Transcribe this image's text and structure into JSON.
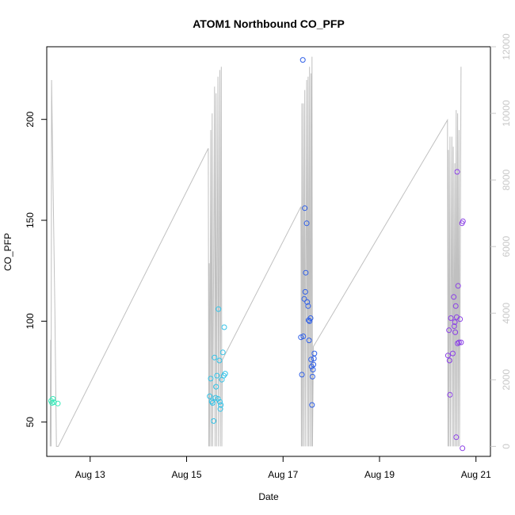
{
  "chart_data": {
    "type": "scatter",
    "title": "ATOM1 Northbound CO_PFP",
    "xlabel": "Date",
    "ylabel": "CO_PFP",
    "x_ticks": [
      "Aug 13",
      "Aug 15",
      "Aug 17",
      "Aug 19",
      "Aug 21"
    ],
    "y_ticks": [
      50,
      100,
      150,
      200
    ],
    "y2_ticks": [
      0,
      2000,
      4000,
      6000,
      8000,
      10000,
      12000
    ],
    "xlim_days": [
      12.1,
      21.3
    ],
    "ylim": [
      33,
      236
    ],
    "y2lim": [
      -300,
      12000
    ],
    "grid": false,
    "legend": "none",
    "point_colors": [
      "#37e8b8",
      "#33c3e8",
      "#3060e8",
      "#8a3fe6"
    ],
    "line_color": "#c0c0c0",
    "axis_color_right": "#c8c8c8",
    "points": [
      {
        "x": 12.19,
        "y": 60.5,
        "g": 0
      },
      {
        "x": 12.21,
        "y": 59.5,
        "g": 0
      },
      {
        "x": 12.23,
        "y": 61.5,
        "g": 0
      },
      {
        "x": 12.25,
        "y": 59.8,
        "g": 0
      },
      {
        "x": 12.33,
        "y": 59.2,
        "g": 0
      },
      {
        "x": 15.48,
        "y": 62.8,
        "g": 1
      },
      {
        "x": 15.5,
        "y": 71.5,
        "g": 1
      },
      {
        "x": 15.52,
        "y": 60.2,
        "g": 1
      },
      {
        "x": 15.54,
        "y": 59.5,
        "g": 1
      },
      {
        "x": 15.56,
        "y": 50.5,
        "g": 1
      },
      {
        "x": 15.58,
        "y": 82.0,
        "g": 1
      },
      {
        "x": 15.6,
        "y": 62.0,
        "g": 1
      },
      {
        "x": 15.61,
        "y": 67.5,
        "g": 1
      },
      {
        "x": 15.63,
        "y": 73.0,
        "g": 1
      },
      {
        "x": 15.65,
        "y": 61.5,
        "g": 1
      },
      {
        "x": 15.66,
        "y": 106.0,
        "g": 1
      },
      {
        "x": 15.68,
        "y": 80.5,
        "g": 1
      },
      {
        "x": 15.69,
        "y": 60.0,
        "g": 1
      },
      {
        "x": 15.7,
        "y": 56.5,
        "g": 1
      },
      {
        "x": 15.71,
        "y": 58.5,
        "g": 1
      },
      {
        "x": 15.73,
        "y": 71.0,
        "g": 1
      },
      {
        "x": 15.75,
        "y": 84.5,
        "g": 1
      },
      {
        "x": 15.77,
        "y": 73.0,
        "g": 1
      },
      {
        "x": 15.78,
        "y": 97.0,
        "g": 1
      },
      {
        "x": 15.8,
        "y": 74.0,
        "g": 1
      },
      {
        "x": 17.37,
        "y": 92.0,
        "g": 2
      },
      {
        "x": 17.39,
        "y": 73.5,
        "g": 2
      },
      {
        "x": 17.41,
        "y": 229.5,
        "g": 2
      },
      {
        "x": 17.42,
        "y": 92.5,
        "g": 2
      },
      {
        "x": 17.44,
        "y": 111.0,
        "g": 2
      },
      {
        "x": 17.45,
        "y": 156.0,
        "g": 2
      },
      {
        "x": 17.46,
        "y": 114.5,
        "g": 2
      },
      {
        "x": 17.47,
        "y": 124.0,
        "g": 2
      },
      {
        "x": 17.49,
        "y": 148.5,
        "g": 2
      },
      {
        "x": 17.5,
        "y": 109.5,
        "g": 2
      },
      {
        "x": 17.52,
        "y": 107.5,
        "g": 2
      },
      {
        "x": 17.53,
        "y": 100.5,
        "g": 2
      },
      {
        "x": 17.54,
        "y": 90.5,
        "g": 2
      },
      {
        "x": 17.55,
        "y": 100.0,
        "g": 2
      },
      {
        "x": 17.57,
        "y": 101.5,
        "g": 2
      },
      {
        "x": 17.58,
        "y": 81.0,
        "g": 2
      },
      {
        "x": 17.59,
        "y": 77.5,
        "g": 2
      },
      {
        "x": 17.6,
        "y": 58.5,
        "g": 2
      },
      {
        "x": 17.61,
        "y": 72.5,
        "g": 2
      },
      {
        "x": 17.62,
        "y": 76.0,
        "g": 2
      },
      {
        "x": 17.63,
        "y": 78.5,
        "g": 2
      },
      {
        "x": 17.64,
        "y": 81.5,
        "g": 2
      },
      {
        "x": 17.65,
        "y": 84.0,
        "g": 2
      },
      {
        "x": 20.42,
        "y": 83.0,
        "g": 3
      },
      {
        "x": 20.44,
        "y": 95.5,
        "g": 3
      },
      {
        "x": 20.45,
        "y": 80.5,
        "g": 3
      },
      {
        "x": 20.46,
        "y": 63.5,
        "g": 3
      },
      {
        "x": 20.48,
        "y": 101.5,
        "g": 3
      },
      {
        "x": 20.52,
        "y": 84.0,
        "g": 3
      },
      {
        "x": 20.54,
        "y": 112.0,
        "g": 3
      },
      {
        "x": 20.55,
        "y": 97.5,
        "g": 3
      },
      {
        "x": 20.56,
        "y": 99.5,
        "g": 3
      },
      {
        "x": 20.57,
        "y": 94.5,
        "g": 3
      },
      {
        "x": 20.58,
        "y": 107.5,
        "g": 3
      },
      {
        "x": 20.59,
        "y": 42.5,
        "g": 3
      },
      {
        "x": 20.6,
        "y": 102.0,
        "g": 3
      },
      {
        "x": 20.61,
        "y": 174.0,
        "g": 3
      },
      {
        "x": 20.62,
        "y": 89.0,
        "g": 3
      },
      {
        "x": 20.63,
        "y": 117.5,
        "g": 3
      },
      {
        "x": 20.65,
        "y": 89.5,
        "g": 3
      },
      {
        "x": 20.67,
        "y": 101.0,
        "g": 3
      },
      {
        "x": 20.69,
        "y": 89.5,
        "g": 3
      },
      {
        "x": 20.71,
        "y": 148.5,
        "g": 3
      },
      {
        "x": 20.72,
        "y": 37.0,
        "g": 3
      },
      {
        "x": 20.73,
        "y": 149.5,
        "g": 3
      }
    ],
    "line": [
      [
        12.17,
        0
      ],
      [
        12.18,
        3200
      ],
      [
        12.19,
        0
      ],
      [
        12.2,
        11000
      ],
      [
        12.27,
        4000
      ],
      [
        12.3,
        0
      ],
      [
        12.34,
        0
      ],
      [
        15.45,
        8950
      ],
      [
        15.46,
        0
      ],
      [
        15.47,
        5500
      ],
      [
        15.48,
        0
      ],
      [
        15.5,
        9500
      ],
      [
        15.51,
        0
      ],
      [
        15.53,
        10000
      ],
      [
        15.54,
        0
      ],
      [
        15.58,
        10800
      ],
      [
        15.59,
        0
      ],
      [
        15.61,
        10600
      ],
      [
        15.62,
        0
      ],
      [
        15.65,
        11100
      ],
      [
        15.66,
        0
      ],
      [
        15.69,
        11300
      ],
      [
        15.7,
        0
      ],
      [
        15.72,
        11400
      ],
      [
        15.73,
        0
      ],
      [
        15.74,
        2600
      ],
      [
        17.37,
        7200
      ],
      [
        17.38,
        0
      ],
      [
        17.39,
        10300
      ],
      [
        17.4,
        0
      ],
      [
        17.42,
        10300
      ],
      [
        17.43,
        0
      ],
      [
        17.45,
        10700
      ],
      [
        17.46,
        0
      ],
      [
        17.49,
        11000
      ],
      [
        17.5,
        0
      ],
      [
        17.52,
        11100
      ],
      [
        17.53,
        0
      ],
      [
        17.55,
        11400
      ],
      [
        17.56,
        0
      ],
      [
        17.58,
        11200
      ],
      [
        17.59,
        0
      ],
      [
        17.6,
        11700
      ],
      [
        17.61,
        0
      ],
      [
        17.63,
        3000
      ],
      [
        20.41,
        9800
      ],
      [
        20.42,
        0
      ],
      [
        20.43,
        8900
      ],
      [
        20.44,
        0
      ],
      [
        20.46,
        9300
      ],
      [
        20.47,
        0
      ],
      [
        20.5,
        9300
      ],
      [
        20.51,
        0
      ],
      [
        20.53,
        9000
      ],
      [
        20.54,
        0
      ],
      [
        20.56,
        8500
      ],
      [
        20.57,
        0
      ],
      [
        20.59,
        10100
      ],
      [
        20.6,
        0
      ],
      [
        20.62,
        10000
      ],
      [
        20.63,
        0
      ],
      [
        20.65,
        9500
      ],
      [
        20.66,
        0
      ],
      [
        20.69,
        11400
      ]
    ]
  }
}
